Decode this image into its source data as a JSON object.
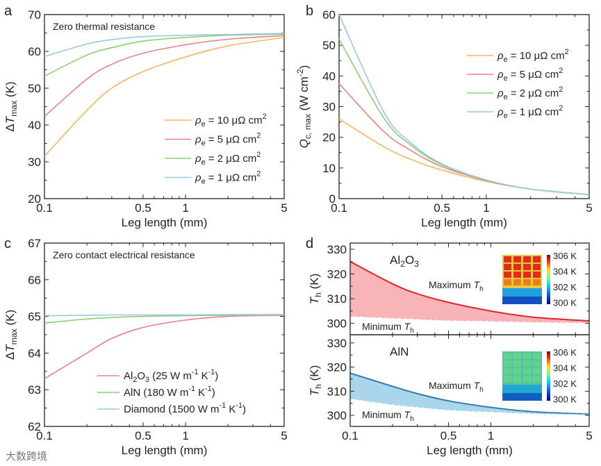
{
  "watermark": "大数跨境",
  "chart_data": [
    {
      "panel": "a",
      "type": "line",
      "title": "Zero thermal resistance",
      "xlabel": "Leg length (mm)",
      "ylabel": {
        "pre": "Δ",
        "var": "T",
        "sub": "max",
        "post": " (K)"
      },
      "xscale": "log",
      "xlim": [
        0.1,
        5
      ],
      "ylim": [
        20,
        70
      ],
      "xticks": [
        0.1,
        0.5,
        1,
        5
      ],
      "xtick_labels": [
        "0.1",
        "0.5",
        "1",
        "5"
      ],
      "yticks": [
        20,
        30,
        40,
        50,
        60,
        70
      ],
      "legend_position": "bottom-right",
      "x": [
        0.1,
        0.2,
        0.3,
        0.5,
        1,
        2,
        5
      ],
      "series": [
        {
          "name": {
            "sym": "ρ",
            "sub": "e",
            "text": " = 10 μΩ cm",
            "sup": "2"
          },
          "color": "#f5b461",
          "values": [
            31.5,
            44,
            50,
            54.5,
            58.5,
            61.5,
            63.8
          ]
        },
        {
          "name": {
            "sym": "ρ",
            "sub": "e",
            "text": " = 5 μΩ cm",
            "sup": "2"
          },
          "color": "#ef7e86",
          "values": [
            42.3,
            52.5,
            56.5,
            59.5,
            61.8,
            63.3,
            64.3
          ]
        },
        {
          "name": {
            "sym": "ρ",
            "sub": "e",
            "text": " = 2 μΩ cm",
            "sup": "2"
          },
          "color": "#8ccf72",
          "values": [
            53.3,
            59,
            61,
            62.8,
            63.8,
            64.4,
            64.7
          ]
        },
        {
          "name": {
            "sym": "ρ",
            "sub": "e",
            "text": " = 1 μΩ cm",
            "sup": "2"
          },
          "color": "#96c8e3",
          "values": [
            58.6,
            62,
            63.2,
            64,
            64.4,
            64.6,
            64.9
          ]
        }
      ]
    },
    {
      "panel": "b",
      "type": "line",
      "title": "",
      "xlabel": "Leg length (mm)",
      "ylabel": {
        "pre": "",
        "var": "Q",
        "sub": "c, max",
        "post": " (W cm",
        "sup": "-2",
        "post2": ")"
      },
      "xscale": "log",
      "xlim": [
        0.1,
        5
      ],
      "ylim": [
        0,
        60
      ],
      "xticks": [
        0.1,
        0.5,
        1,
        5
      ],
      "xtick_labels": [
        "0.1",
        "0.5",
        "1",
        "5"
      ],
      "yticks": [
        0,
        10,
        20,
        30,
        40,
        50,
        60
      ],
      "legend_position": "top-right",
      "x": [
        0.1,
        0.2,
        0.3,
        0.5,
        1,
        2,
        5
      ],
      "series": [
        {
          "name": {
            "sym": "ρ",
            "sub": "e",
            "text": " = 10 μΩ cm",
            "sup": "2"
          },
          "color": "#f5b461",
          "values": [
            26,
            17,
            13,
            9.3,
            5.6,
            3.1,
            1.3
          ]
        },
        {
          "name": {
            "sym": "ρ",
            "sub": "e",
            "text": " = 5 μΩ cm",
            "sup": "2"
          },
          "color": "#ef7e86",
          "values": [
            37.5,
            22,
            16,
            10.4,
            5.9,
            3.1,
            1.3
          ]
        },
        {
          "name": {
            "sym": "ρ",
            "sub": "e",
            "text": " = 2 μΩ cm",
            "sup": "2"
          },
          "color": "#8ccf72",
          "values": [
            52,
            26.5,
            17.8,
            11,
            6.0,
            3.1,
            1.3
          ]
        },
        {
          "name": {
            "sym": "ρ",
            "sub": "e",
            "text": " = 1 μΩ cm",
            "sup": "2"
          },
          "color": "#96c8e3",
          "values": [
            60,
            28.5,
            18.6,
            11.3,
            6.1,
            3.1,
            1.3
          ]
        }
      ]
    },
    {
      "panel": "c",
      "type": "line",
      "title": "Zero contact electrical resistance",
      "xlabel": "Leg length (mm)",
      "ylabel": {
        "pre": "Δ",
        "var": "T",
        "sub": "max",
        "post": " (K)"
      },
      "xscale": "log",
      "xlim": [
        0.1,
        5
      ],
      "ylim": [
        62,
        67
      ],
      "xticks": [
        0.1,
        0.5,
        1,
        5
      ],
      "xtick_labels": [
        "0.1",
        "0.5",
        "1",
        "5"
      ],
      "yticks": [
        62,
        63,
        64,
        65,
        66,
        67
      ],
      "legend_position": "bottom-center",
      "x": [
        0.1,
        0.2,
        0.3,
        0.5,
        1,
        2,
        5
      ],
      "series": [
        {
          "name": {
            "pre": "Al",
            "sub": "2",
            "mid": "O",
            "sub2": "3",
            "text": " (25 W m",
            "sup": "-1",
            "text2": " K",
            "sup2": "-1",
            "text3": ")"
          },
          "color": "#ef7e86",
          "values": [
            63.3,
            64.0,
            64.4,
            64.7,
            64.9,
            65.0,
            65.03
          ]
        },
        {
          "name": {
            "pre": "AlN",
            "text": " (180 W m",
            "sup": "-1",
            "text2": " K",
            "sup2": "-1",
            "text3": ")"
          },
          "color": "#8ccf72",
          "values": [
            64.82,
            64.93,
            64.97,
            65.0,
            65.02,
            65.03,
            65.04
          ]
        },
        {
          "name": {
            "pre": "Diamond",
            "text": " (1500 W m",
            "sup": "-1",
            "text2": " K",
            "sup2": "-1",
            "text3": ")"
          },
          "color": "#96c8e3",
          "values": [
            65.02,
            65.03,
            65.04,
            65.04,
            65.04,
            65.05,
            65.05
          ]
        }
      ]
    },
    {
      "panel": "d",
      "type": "area",
      "xlabel": "Leg length (mm)",
      "ylabel": {
        "var": "T",
        "sub": "h",
        "post": " (K)"
      },
      "xscale": "log",
      "xlim": [
        0.1,
        5
      ],
      "xticks": [
        0.1,
        0.5,
        1,
        5
      ],
      "xtick_labels": [
        "0.1",
        "0.5",
        "1",
        "5"
      ],
      "x": [
        0.1,
        0.2,
        0.3,
        0.5,
        1,
        2,
        5
      ],
      "subplots": [
        {
          "title": {
            "pre": "Al",
            "sub": "2",
            "mid": "O",
            "sub2": "3"
          },
          "ylim": [
            295.4,
            332.5
          ],
          "yticks": [
            300,
            310,
            320,
            330
          ],
          "color": "#e0262b",
          "fill": "#f7b3b5",
          "max_label": {
            "text": "Maximum ",
            "var": "T",
            "sub": "h"
          },
          "min_label": {
            "text": "Minimum ",
            "var": "T",
            "sub": "h"
          },
          "max": [
            325,
            316,
            312,
            308.5,
            305,
            302.5,
            301
          ],
          "min": [
            303,
            302.2,
            301.8,
            301.3,
            301,
            300.6,
            300.3
          ],
          "inset": {
            "colorbar_labels": [
              "306 K",
              "304 K",
              "302 K",
              "300 K"
            ],
            "state": "hot"
          }
        },
        {
          "title": {
            "pre": "AlN"
          },
          "ylim": [
            295.4,
            333.4
          ],
          "yticks": [
            300,
            310,
            320,
            330
          ],
          "color": "#2a7ab5",
          "fill": "#a9d6ea",
          "max_label": {
            "text": "Maximum ",
            "var": "T",
            "sub": "h"
          },
          "min_label": {
            "text": "Minimum ",
            "var": "T",
            "sub": "h"
          },
          "max": [
            317.5,
            312,
            309,
            306,
            303.3,
            301.5,
            300.5
          ],
          "min": [
            307,
            304.5,
            303.5,
            302.3,
            301.5,
            300.8,
            300.3
          ],
          "inset": {
            "colorbar_labels": [
              "306 K",
              "304 K",
              "302 K",
              "300 K"
            ],
            "state": "cool"
          }
        }
      ]
    }
  ]
}
